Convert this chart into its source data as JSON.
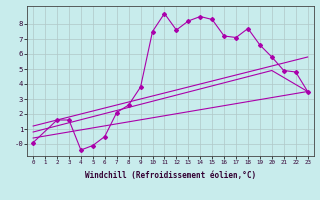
{
  "xlabel": "Windchill (Refroidissement éolien,°C)",
  "bg_color": "#c8ecec",
  "line_color": "#aa00aa",
  "grid_color": "#b0c8c8",
  "xlim": [
    -0.5,
    23.5
  ],
  "ylim": [
    -0.8,
    9.2
  ],
  "yticks": [
    0,
    1,
    2,
    3,
    4,
    5,
    6,
    7,
    8
  ],
  "ytick_labels": [
    "-0",
    "1",
    "2",
    "3",
    "4",
    "5",
    "6",
    "7",
    "8"
  ],
  "xticks": [
    0,
    1,
    2,
    3,
    4,
    5,
    6,
    7,
    8,
    9,
    10,
    11,
    12,
    13,
    14,
    15,
    16,
    17,
    18,
    19,
    20,
    21,
    22,
    23
  ],
  "curve1_x": [
    0,
    2,
    3,
    4,
    5,
    6,
    7,
    8,
    9,
    10,
    11,
    12,
    13,
    14,
    15,
    16,
    17,
    18,
    19,
    20,
    21,
    22,
    23
  ],
  "curve1_y": [
    0.1,
    1.6,
    1.6,
    -0.4,
    -0.1,
    0.5,
    2.1,
    2.6,
    3.8,
    7.5,
    8.7,
    7.6,
    8.2,
    8.5,
    8.3,
    7.2,
    7.1,
    7.7,
    6.6,
    5.8,
    4.9,
    4.8,
    3.5
  ],
  "line1_x": [
    0,
    23
  ],
  "line1_y": [
    0.4,
    3.5
  ],
  "line2_x": [
    0,
    20,
    23
  ],
  "line2_y": [
    0.8,
    4.9,
    3.5
  ],
  "line3_x": [
    0,
    23
  ],
  "line3_y": [
    1.2,
    5.8
  ]
}
